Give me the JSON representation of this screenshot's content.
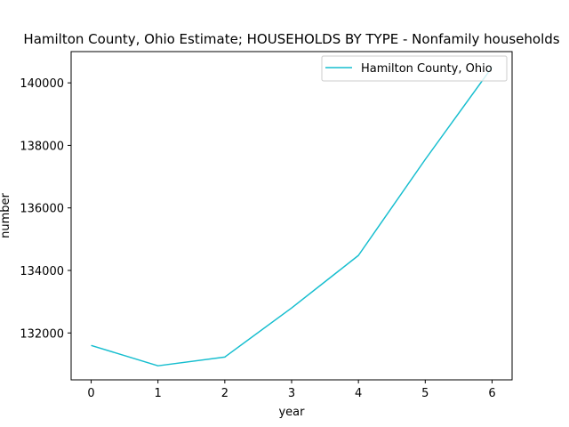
{
  "chart_data": {
    "type": "line",
    "title": "Hamilton County, Ohio Estimate; HOUSEHOLDS BY TYPE - Nonfamily households",
    "xlabel": "year",
    "ylabel": "number",
    "x": [
      0,
      1,
      2,
      3,
      4,
      5,
      6
    ],
    "series": [
      {
        "name": "Hamilton County, Ohio",
        "color": "#17becf",
        "values": [
          131600,
          130950,
          131230,
          132800,
          134480,
          137550,
          140500
        ]
      }
    ],
    "xlim": [
      -0.3,
      6.3
    ],
    "ylim": [
      130500,
      141000
    ],
    "xticks": [
      0,
      1,
      2,
      3,
      4,
      5,
      6
    ],
    "yticks": [
      132000,
      134000,
      136000,
      138000,
      140000
    ],
    "grid": false,
    "legend_position": "top-right"
  }
}
